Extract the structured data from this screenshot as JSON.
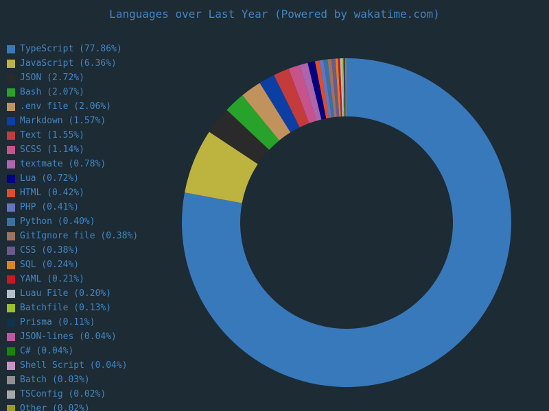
{
  "page": {
    "background": "#1d2b35",
    "text_color": "#4386c2"
  },
  "title": "Languages over Last Year (Powered by wakatime.com)",
  "chart_data": {
    "type": "pie",
    "donut": true,
    "title": "Languages over Last Year (Powered by wakatime.com)",
    "legend_position": "left",
    "start_angle_deg": -90,
    "direction": "clockwise",
    "segments": [
      {
        "label": "TypeScript",
        "value": 77.86,
        "color": "#3879bb",
        "display": "TypeScript (77.86%)"
      },
      {
        "label": "JavaScript",
        "value": 6.36,
        "color": "#bdb43f",
        "display": "JavaScript (6.36%)"
      },
      {
        "label": "JSON",
        "value": 2.72,
        "color": "#2a2a2a",
        "display": "JSON (2.72%)"
      },
      {
        "label": "Bash",
        "value": 2.07,
        "color": "#27a32b",
        "display": "Bash (2.07%)"
      },
      {
        "label": ".env file",
        "value": 2.06,
        "color": "#c2925c",
        "display": ".env file (2.06%)"
      },
      {
        "label": "Markdown",
        "value": 1.57,
        "color": "#0b3fa3",
        "display": "Markdown (1.57%)"
      },
      {
        "label": "Text",
        "value": 1.55,
        "color": "#c43b3b",
        "display": "Text (1.55%)"
      },
      {
        "label": "SCSS",
        "value": 1.14,
        "color": "#c6538c",
        "display": "SCSS (1.14%)"
      },
      {
        "label": "textmate",
        "value": 0.78,
        "color": "#ad65ad",
        "display": "textmate (0.78%)"
      },
      {
        "label": "Lua",
        "value": 0.72,
        "color": "#000080",
        "display": "Lua (0.72%)"
      },
      {
        "label": "HTML",
        "value": 0.42,
        "color": "#e34c26",
        "display": "HTML (0.42%)"
      },
      {
        "label": "PHP",
        "value": 0.41,
        "color": "#6674bd",
        "display": "PHP (0.41%)"
      },
      {
        "label": "Python",
        "value": 0.4,
        "color": "#3572a5",
        "display": "Python (0.40%)"
      },
      {
        "label": "GitIgnore file",
        "value": 0.38,
        "color": "#a0715f",
        "display": "GitIgnore file (0.38%)"
      },
      {
        "label": "CSS",
        "value": 0.38,
        "color": "#6a5a8e",
        "display": "CSS (0.38%)"
      },
      {
        "label": "SQL",
        "value": 0.24,
        "color": "#d9861f",
        "display": "SQL (0.24%)"
      },
      {
        "label": "YAML",
        "value": 0.21,
        "color": "#cb171e",
        "display": "YAML (0.21%)"
      },
      {
        "label": "Luau File",
        "value": 0.2,
        "color": "#b4bfc7",
        "display": "Luau File (0.20%)"
      },
      {
        "label": "Batchfile",
        "value": 0.13,
        "color": "#9dbf2c",
        "display": "Batchfile (0.13%)"
      },
      {
        "label": "Prisma",
        "value": 0.11,
        "color": "#0c344b",
        "display": "Prisma (0.11%)"
      },
      {
        "label": "JSON-lines",
        "value": 0.04,
        "color": "#c0569f",
        "display": "JSON-lines (0.04%)"
      },
      {
        "label": "C#",
        "value": 0.04,
        "color": "#178600",
        "display": "C# (0.04%)"
      },
      {
        "label": "Shell Script",
        "value": 0.04,
        "color": "#cd90c4",
        "display": "Shell Script (0.04%)"
      },
      {
        "label": "Batch",
        "value": 0.03,
        "color": "#909090",
        "display": "Batch (0.03%)"
      },
      {
        "label": "TSConfig",
        "value": 0.02,
        "color": "#a8a8a8",
        "display": "TSConfig (0.02%)"
      },
      {
        "label": "Other",
        "value": 0.02,
        "color": "#9c9c20",
        "display": "Other (0.02%)"
      }
    ]
  }
}
